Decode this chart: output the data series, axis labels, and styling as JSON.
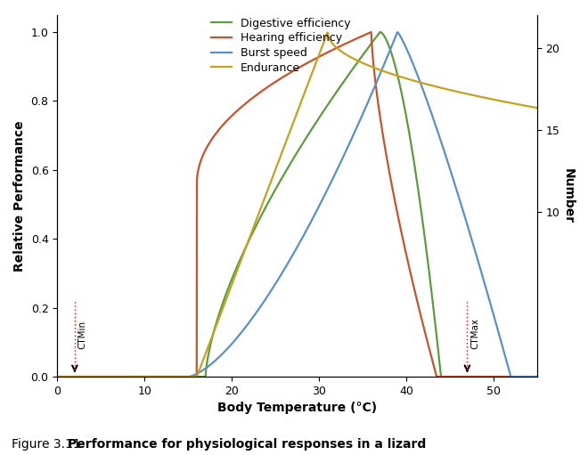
{
  "xlabel": "Body Temperature (°C)",
  "ylabel_left": "Relative Performance",
  "ylabel_right": "Number",
  "xlim": [
    0,
    55
  ],
  "ylim_left": [
    0,
    1.05
  ],
  "ylim_right": [
    0,
    22
  ],
  "yticks_left": [
    0,
    0.2,
    0.4,
    0.6,
    0.8,
    1.0
  ],
  "yticks_right": [
    10,
    15,
    20
  ],
  "xticks": [
    0,
    10,
    20,
    30,
    40,
    50
  ],
  "colors": {
    "digestive": "#5a9e3a",
    "hearing": "#c8522a",
    "burst": "#5b8fc9",
    "endurance": "#c8a020"
  },
  "legend_labels": [
    "Digestive efficiency",
    "Hearing efficiency",
    "Burst speed",
    "Endurance"
  ],
  "ctmin_x": 2,
  "ctmax_x": 47,
  "background": "#ffffff"
}
